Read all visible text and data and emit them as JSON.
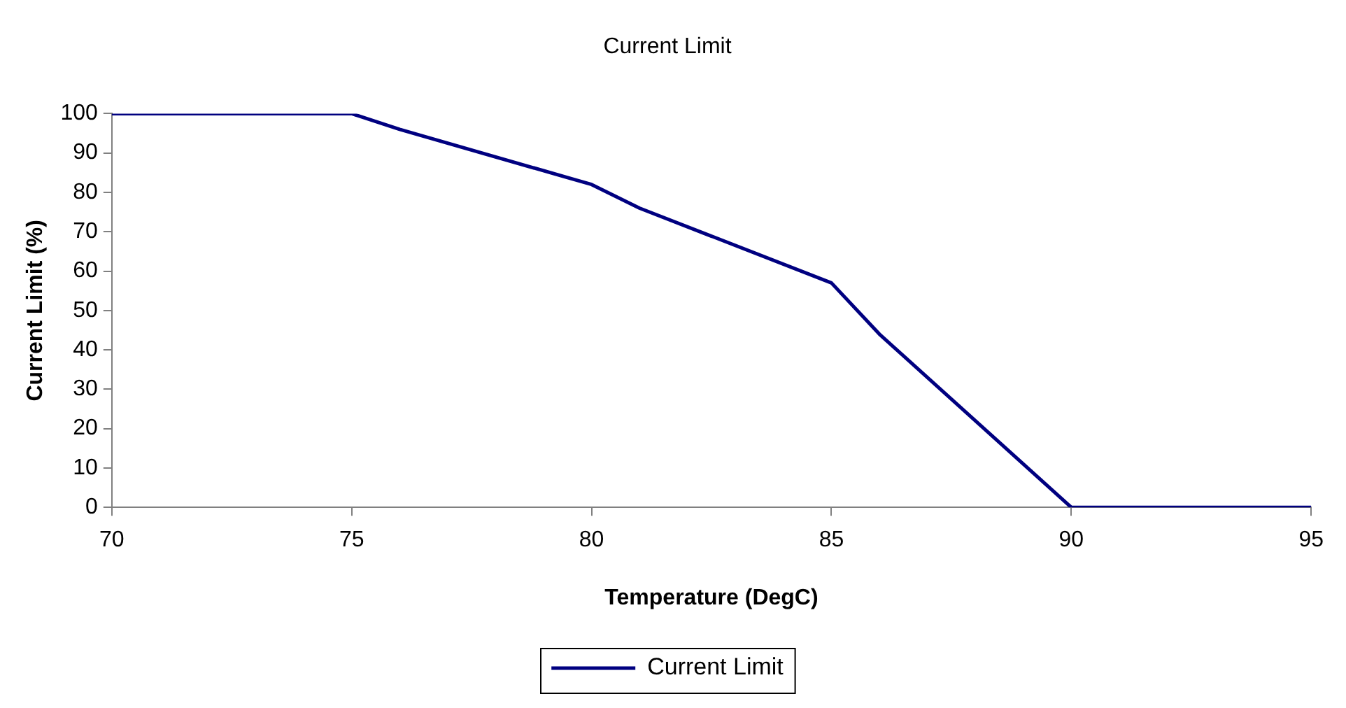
{
  "chart_data": {
    "type": "line",
    "title": "Current Limit",
    "xlabel": "Temperature (DegC)",
    "ylabel": "Current Limit (%)",
    "x": [
      70,
      75,
      76,
      80,
      81,
      85,
      86,
      90,
      95
    ],
    "series": [
      {
        "name": "Current Limit",
        "color": "#000080",
        "values": [
          100,
          100,
          96,
          82,
          76,
          57,
          44,
          0,
          0
        ]
      }
    ],
    "xlim": [
      70,
      95
    ],
    "xticks": [
      70,
      75,
      80,
      85,
      90,
      95
    ],
    "ylim": [
      0,
      100
    ],
    "yticks": [
      0,
      10,
      20,
      30,
      40,
      50,
      60,
      70,
      80,
      90,
      100
    ],
    "grid": false,
    "legend": "bottom",
    "marker": "none",
    "line_style": "solid"
  }
}
